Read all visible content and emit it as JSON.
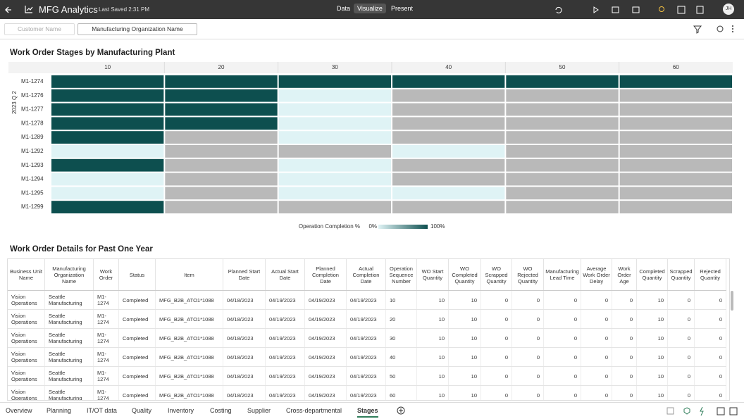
{
  "app": {
    "title": "MFG Analytics",
    "saved": "Last Saved 2:31 PM",
    "modes": [
      "Data",
      "Visualize",
      "Present"
    ],
    "active_mode": 1,
    "user": "JH"
  },
  "filters": [
    "Customer Name",
    "Manufacturing Organization Name"
  ],
  "chart_data": {
    "type": "heatmap",
    "title": "Work Order Stages by Manufacturing Plant",
    "period": "2023 Q 2",
    "x": [
      10,
      20,
      30,
      40,
      50,
      60
    ],
    "categories": [
      "M1-1274",
      "M1-1276",
      "M1-1277",
      "M1-1278",
      "M1-1289",
      "M1-1292",
      "M1-1293",
      "M1-1294",
      "M1-1295",
      "M1-1299"
    ],
    "values": [
      [
        100,
        100,
        100,
        100,
        100,
        100
      ],
      [
        100,
        100,
        0,
        null,
        null,
        null
      ],
      [
        100,
        100,
        0,
        null,
        null,
        null
      ],
      [
        100,
        100,
        0,
        null,
        null,
        null
      ],
      [
        100,
        null,
        0,
        null,
        null,
        null
      ],
      [
        0,
        null,
        null,
        0,
        null,
        null
      ],
      [
        100,
        null,
        0,
        null,
        null,
        null
      ],
      [
        0,
        null,
        0,
        null,
        null,
        null
      ],
      [
        0,
        null,
        0,
        0,
        null,
        null
      ],
      [
        100,
        null,
        null,
        null,
        null,
        null
      ]
    ],
    "legend": {
      "title": "Operation Completion %",
      "scale": [
        {
          "value": 0,
          "label": "0%"
        },
        {
          "value": 100,
          "label": "100%"
        }
      ]
    },
    "colors": [
      "#dff3f5",
      "#0d4f4f"
    ],
    "empty_color": "#b9b9b9"
  },
  "table": {
    "title": "Work Order Details for Past One Year",
    "columns": [
      "Business Unit Name",
      "Manufacturing Organization Name",
      "Work Order",
      "Status",
      "Item",
      "Planned Start Date",
      "Actual Start Date",
      "Planned Completion Date",
      "Actual Completion Date",
      "Operation Sequence Number",
      "WO Start Quantity",
      "WO Completed Quantity",
      "WO Scrapped Quantity",
      "WO Rejected Quantity",
      "Manufacturing Lead Time",
      "Average Work Order Delay",
      "Work Order Age",
      "Completed Quantity",
      "Scrapped Quantity",
      "Rejected Quantity"
    ],
    "rows": [
      [
        "Vision Operations",
        "Seattle Manufacturing",
        "M1-1274",
        "Completed",
        "MFG_B2B_ATO1*1088",
        "04/18/2023",
        "04/19/2023",
        "04/19/2023",
        "04/19/2023",
        10,
        10,
        10,
        0,
        0,
        0,
        0,
        0,
        10,
        0,
        0
      ],
      [
        "Vision Operations",
        "Seattle Manufacturing",
        "M1-1274",
        "Completed",
        "MFG_B2B_ATO1*1088",
        "04/18/2023",
        "04/19/2023",
        "04/19/2023",
        "04/19/2023",
        20,
        10,
        10,
        0,
        0,
        0,
        0,
        0,
        10,
        0,
        0
      ],
      [
        "Vision Operations",
        "Seattle Manufacturing",
        "M1-1274",
        "Completed",
        "MFG_B2B_ATO1*1088",
        "04/18/2023",
        "04/19/2023",
        "04/19/2023",
        "04/19/2023",
        30,
        10,
        10,
        0,
        0,
        0,
        0,
        0,
        10,
        0,
        0
      ],
      [
        "Vision Operations",
        "Seattle Manufacturing",
        "M1-1274",
        "Completed",
        "MFG_B2B_ATO1*1088",
        "04/18/2023",
        "04/19/2023",
        "04/19/2023",
        "04/19/2023",
        40,
        10,
        10,
        0,
        0,
        0,
        0,
        0,
        10,
        0,
        0
      ],
      [
        "Vision Operations",
        "Seattle Manufacturing",
        "M1-1274",
        "Completed",
        "MFG_B2B_ATO1*1088",
        "04/18/2023",
        "04/19/2023",
        "04/19/2023",
        "04/19/2023",
        50,
        10,
        10,
        0,
        0,
        0,
        0,
        0,
        10,
        0,
        0
      ],
      [
        "Vision Operations",
        "Seattle Manufacturing",
        "M1-1274",
        "Completed",
        "MFG_B2B_ATO1*1088",
        "04/18/2023",
        "04/19/2023",
        "04/19/2023",
        "04/19/2023",
        60,
        10,
        10,
        0,
        0,
        0,
        0,
        0,
        10,
        0,
        0
      ]
    ]
  },
  "tabs": [
    "Overview",
    "Planning",
    "IT/OT data",
    "Quality",
    "Inventory",
    "Costing",
    "Supplier",
    "Cross-departmental",
    "Stages"
  ],
  "active_tab": 8
}
